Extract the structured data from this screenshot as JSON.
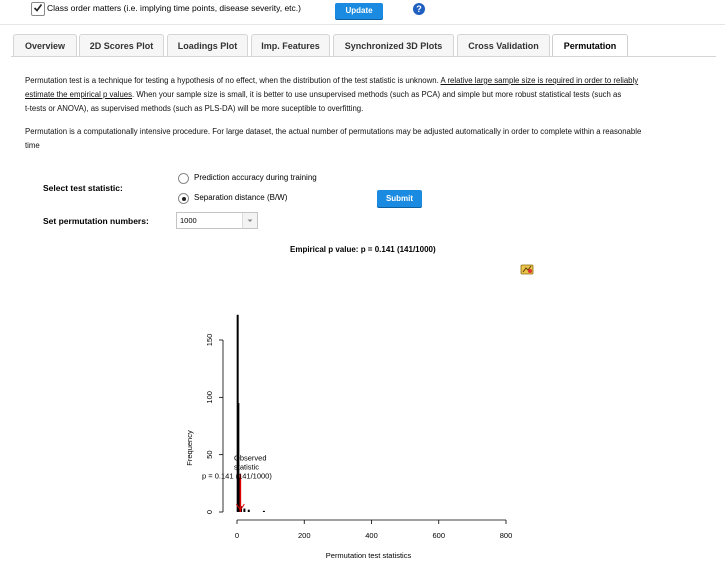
{
  "top": {
    "class_order_label": "Class order matters (i.e. implying time points, disease severity, etc.)",
    "class_order_checked": true,
    "update_label": "Update",
    "help_label": "?"
  },
  "tabs": [
    {
      "label": "Overview"
    },
    {
      "label": "2D Scores Plot"
    },
    {
      "label": "Loadings Plot"
    },
    {
      "label": "Imp. Features"
    },
    {
      "label": "Synchronized 3D Plots"
    },
    {
      "label": "Cross Validation"
    },
    {
      "label": "Permutation",
      "active": true
    }
  ],
  "desc": {
    "p1_a": "Permutation test is a technique for testing a hypothesis of no effect, when the distribution of the test statistic is unknown.",
    "p1_link": "A relative large sample size is required in order to reliably",
    "p1_b_link": "estimate the empirical p values",
    "p1_c": ". When your sample size is small, it is better to use unsupervised methods (such as PCA) and simple but more robust statistical tests (such as",
    "p1_d": "t-tests or ANOVA), as supervised methods (such as PLS-DA) will be more suceptible to overfitting.",
    "p2_a": "Permutation is a computationally intensive procedure. For large dataset, the actual number of permutations may be adjusted automatically in order to complete within a reasonable",
    "p2_b": "time"
  },
  "form": {
    "stat_label": "Select test statistic:",
    "options": [
      "Prediction accuracy during training",
      "Separation distance (B/W)"
    ],
    "selected_option": 1,
    "perm_label": "Set permutation numbers:",
    "perm_value": "1000",
    "submit_label": "Submit"
  },
  "result": {
    "pvalue_text": "Empirical p value: p = 0.141 (141/1000)"
  },
  "chart_data": {
    "type": "bar",
    "title": "",
    "xlabel": "Permutation test statistics",
    "ylabel": "Frequency",
    "xlim": [
      0,
      800
    ],
    "ylim": [
      0,
      150
    ],
    "x_ticks": [
      0,
      200,
      400,
      600,
      800
    ],
    "y_ticks": [
      0,
      50,
      100,
      150
    ],
    "bins": [
      {
        "x": 2,
        "count": 172
      },
      {
        "x": 4,
        "count": 95
      },
      {
        "x": 6,
        "count": 30
      },
      {
        "x": 8,
        "count": 12
      },
      {
        "x": 12,
        "count": 5
      },
      {
        "x": 22,
        "count": 3
      },
      {
        "x": 35,
        "count": 2
      },
      {
        "x": 80,
        "count": 1
      }
    ],
    "observed": {
      "x": 10,
      "label_line1": "Observed",
      "label_line2": "statistic",
      "label_line3": "p = 0.141 (141/1000)"
    },
    "colors": {
      "bars": "#000000",
      "observed": "#e00000"
    }
  }
}
